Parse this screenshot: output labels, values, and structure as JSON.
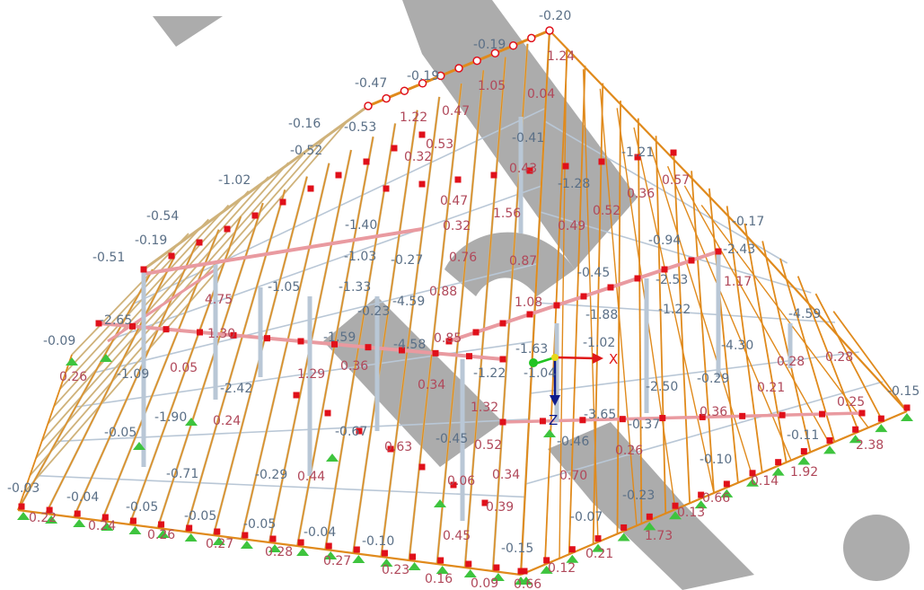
{
  "colors": {
    "background": "#ffffff",
    "member_orange": "#e08a1c",
    "member_tan": "#cfb27a",
    "member_light": "#b9c7d6",
    "node_red": "#e0101a",
    "support_green": "#3ec43e",
    "negative_value": "#5a6f86",
    "positive_value": "#b0485a",
    "watermark": "#9a9a9a",
    "axis_x": "#e01818",
    "axis_y": "#22c422",
    "axis_z": "#0d1c8c"
  },
  "axes": {
    "x_label": "X",
    "z_label": "Z"
  },
  "icons": [
    "support-icon",
    "node-marker-icon",
    "coordinate-axes-icon",
    "watermark-logo-icon"
  ],
  "result_values": [
    {
      "text": "-0.20",
      "tone": "neg"
    },
    {
      "text": "1.24",
      "tone": "pos"
    },
    {
      "text": "-0.19",
      "tone": "neg"
    },
    {
      "text": "1.05",
      "tone": "pos"
    },
    {
      "text": "0.04",
      "tone": "pos"
    },
    {
      "text": "-0.47",
      "tone": "neg"
    },
    {
      "text": "-0.19",
      "tone": "neg"
    },
    {
      "text": "1.22",
      "tone": "pos"
    },
    {
      "text": "0.47",
      "tone": "pos"
    },
    {
      "text": "-0.16",
      "tone": "neg"
    },
    {
      "text": "-0.53",
      "tone": "neg"
    },
    {
      "text": "0.53",
      "tone": "pos"
    },
    {
      "text": "-0.52",
      "tone": "neg"
    },
    {
      "text": "0.32",
      "tone": "pos"
    },
    {
      "text": "-0.41",
      "tone": "neg"
    },
    {
      "text": "0.43",
      "tone": "pos"
    },
    {
      "text": "-1.21",
      "tone": "neg"
    },
    {
      "text": "0.57",
      "tone": "pos"
    },
    {
      "text": "0.36",
      "tone": "pos"
    },
    {
      "text": "-1.02",
      "tone": "neg"
    },
    {
      "text": "-1.28",
      "tone": "neg"
    },
    {
      "text": "0.52",
      "tone": "pos"
    },
    {
      "text": "0.47",
      "tone": "pos"
    },
    {
      "text": "-0.54",
      "tone": "neg"
    },
    {
      "text": "1.56",
      "tone": "pos"
    },
    {
      "text": "0.49",
      "tone": "pos"
    },
    {
      "text": "-1.40",
      "tone": "neg"
    },
    {
      "text": "0.32",
      "tone": "pos"
    },
    {
      "text": "-0.17",
      "tone": "neg"
    },
    {
      "text": "-0.19",
      "tone": "neg"
    },
    {
      "text": "-0.94",
      "tone": "neg"
    },
    {
      "text": "-2.43",
      "tone": "neg"
    },
    {
      "text": "-0.51",
      "tone": "neg"
    },
    {
      "text": "-1.03",
      "tone": "neg"
    },
    {
      "text": "-0.27",
      "tone": "neg"
    },
    {
      "text": "0.76",
      "tone": "pos"
    },
    {
      "text": "0.87",
      "tone": "pos"
    },
    {
      "text": "-0.45",
      "tone": "neg"
    },
    {
      "text": "-1.05",
      "tone": "neg"
    },
    {
      "text": "-1.33",
      "tone": "neg"
    },
    {
      "text": "-4.59",
      "tone": "neg"
    },
    {
      "text": "0.88",
      "tone": "pos"
    },
    {
      "text": "-2.53",
      "tone": "neg"
    },
    {
      "text": "1.17",
      "tone": "pos"
    },
    {
      "text": "4.75",
      "tone": "pos"
    },
    {
      "text": "-0.23",
      "tone": "neg"
    },
    {
      "text": "1.08",
      "tone": "pos"
    },
    {
      "text": "-1.22",
      "tone": "neg"
    },
    {
      "text": "-2.65",
      "tone": "neg"
    },
    {
      "text": "-1.88",
      "tone": "neg"
    },
    {
      "text": "-4.59",
      "tone": "neg"
    },
    {
      "text": "-0.09",
      "tone": "neg"
    },
    {
      "text": "1.30",
      "tone": "pos"
    },
    {
      "text": "-1.59",
      "tone": "neg"
    },
    {
      "text": "-4.58",
      "tone": "neg"
    },
    {
      "text": "0.85",
      "tone": "pos"
    },
    {
      "text": "-1.63",
      "tone": "neg"
    },
    {
      "text": "-1.02",
      "tone": "neg"
    },
    {
      "text": "-4.30",
      "tone": "neg"
    },
    {
      "text": "0.28",
      "tone": "pos"
    },
    {
      "text": "0.28",
      "tone": "pos"
    },
    {
      "text": "0.26",
      "tone": "pos"
    },
    {
      "text": "0.05",
      "tone": "pos"
    },
    {
      "text": "1.29",
      "tone": "pos"
    },
    {
      "text": "0.36",
      "tone": "pos"
    },
    {
      "text": "-1.04",
      "tone": "neg"
    },
    {
      "text": "-0.29",
      "tone": "neg"
    },
    {
      "text": "0.21",
      "tone": "pos"
    },
    {
      "text": "-1.09",
      "tone": "neg"
    },
    {
      "text": "-2.42",
      "tone": "neg"
    },
    {
      "text": "0.34",
      "tone": "pos"
    },
    {
      "text": "-1.22",
      "tone": "neg"
    },
    {
      "text": "-2.50",
      "tone": "neg"
    },
    {
      "text": "0.25",
      "tone": "pos"
    },
    {
      "text": "-0.15",
      "tone": "neg"
    },
    {
      "text": "-1.90",
      "tone": "neg"
    },
    {
      "text": "1.32",
      "tone": "pos"
    },
    {
      "text": "-3.65",
      "tone": "neg"
    },
    {
      "text": "0.36",
      "tone": "pos"
    },
    {
      "text": "-0.05",
      "tone": "neg"
    },
    {
      "text": "0.24",
      "tone": "pos"
    },
    {
      "text": "-0.67",
      "tone": "neg"
    },
    {
      "text": "-0.45",
      "tone": "neg"
    },
    {
      "text": "-0.37",
      "tone": "neg"
    },
    {
      "text": "-0.11",
      "tone": "neg"
    },
    {
      "text": "2.38",
      "tone": "pos"
    },
    {
      "text": "0.63",
      "tone": "pos"
    },
    {
      "text": "0.52",
      "tone": "pos"
    },
    {
      "text": "-0.46",
      "tone": "neg"
    },
    {
      "text": "0.26",
      "tone": "pos"
    },
    {
      "text": "1.92",
      "tone": "pos"
    },
    {
      "text": "-0.71",
      "tone": "neg"
    },
    {
      "text": "-0.10",
      "tone": "neg"
    },
    {
      "text": "-0.29",
      "tone": "neg"
    },
    {
      "text": "0.44",
      "tone": "pos"
    },
    {
      "text": "0.34",
      "tone": "pos"
    },
    {
      "text": "0.70",
      "tone": "pos"
    },
    {
      "text": "0.14",
      "tone": "pos"
    },
    {
      "text": "-0.03",
      "tone": "neg"
    },
    {
      "text": "0.06",
      "tone": "pos"
    },
    {
      "text": "0.66",
      "tone": "pos"
    },
    {
      "text": "-0.04",
      "tone": "neg"
    },
    {
      "text": "-0.23",
      "tone": "neg"
    },
    {
      "text": "0.22",
      "tone": "pos"
    },
    {
      "text": "-0.05",
      "tone": "neg"
    },
    {
      "text": "0.39",
      "tone": "pos"
    },
    {
      "text": "0.13",
      "tone": "pos"
    },
    {
      "text": "0.24",
      "tone": "pos"
    },
    {
      "text": "-0.05",
      "tone": "neg"
    },
    {
      "text": "-0.07",
      "tone": "neg"
    },
    {
      "text": "0.26",
      "tone": "pos"
    },
    {
      "text": "-0.05",
      "tone": "neg"
    },
    {
      "text": "0.45",
      "tone": "pos"
    },
    {
      "text": "1.73",
      "tone": "pos"
    },
    {
      "text": "0.27",
      "tone": "pos"
    },
    {
      "text": "-0.04",
      "tone": "neg"
    },
    {
      "text": "0.28",
      "tone": "pos"
    },
    {
      "text": "-0.10",
      "tone": "neg"
    },
    {
      "text": "-0.15",
      "tone": "neg"
    },
    {
      "text": "0.27",
      "tone": "pos"
    },
    {
      "text": "0.21",
      "tone": "pos"
    },
    {
      "text": "0.23",
      "tone": "pos"
    },
    {
      "text": "0.12",
      "tone": "pos"
    },
    {
      "text": "0.16",
      "tone": "pos"
    },
    {
      "text": "0.09",
      "tone": "pos"
    },
    {
      "text": "0.66",
      "tone": "pos"
    }
  ]
}
